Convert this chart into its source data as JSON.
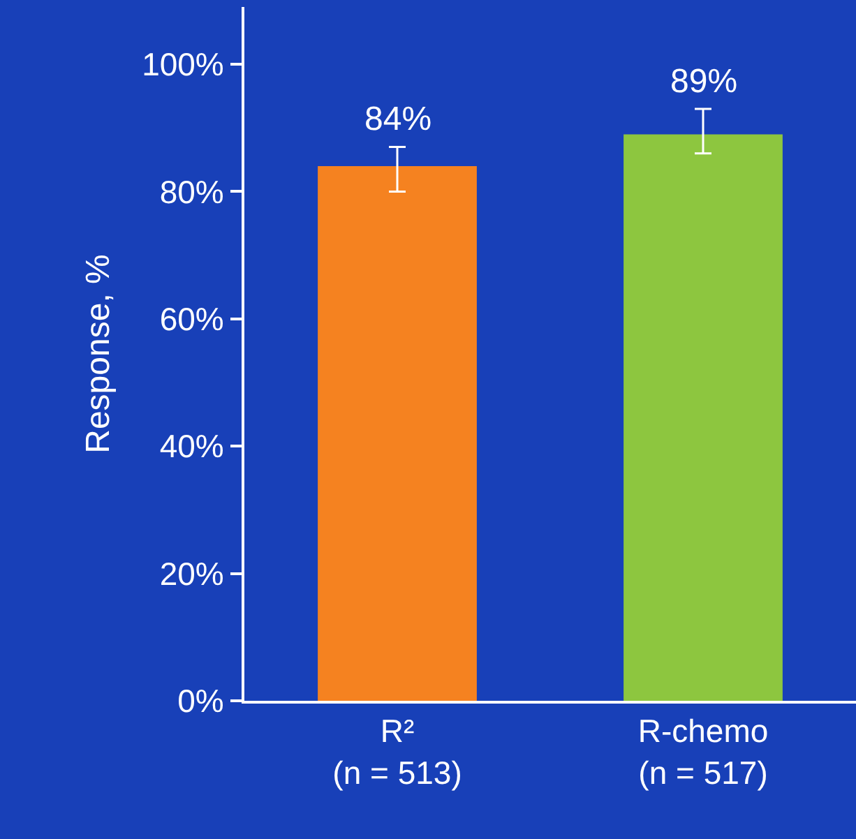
{
  "chart_data": {
    "type": "bar",
    "ylabel": "Response, %",
    "categories": [
      "R²\n(n = 513)",
      "R-chemo\n(n = 517)"
    ],
    "values": [
      84,
      89
    ],
    "colors": [
      "#f58220",
      "#8dc63f"
    ],
    "errors": [
      [
        80,
        87
      ],
      [
        86,
        93
      ]
    ],
    "value_labels": [
      "84%",
      "89%"
    ],
    "ylim": [
      0,
      109
    ],
    "yticks": [
      {
        "value": 0,
        "label": "0%"
      },
      {
        "value": 20,
        "label": "20%"
      },
      {
        "value": 40,
        "label": "40%"
      },
      {
        "value": 60,
        "label": "60%"
      },
      {
        "value": 80,
        "label": "80%"
      },
      {
        "value": 100,
        "label": "100%"
      }
    ],
    "grid": false,
    "legend": false
  }
}
